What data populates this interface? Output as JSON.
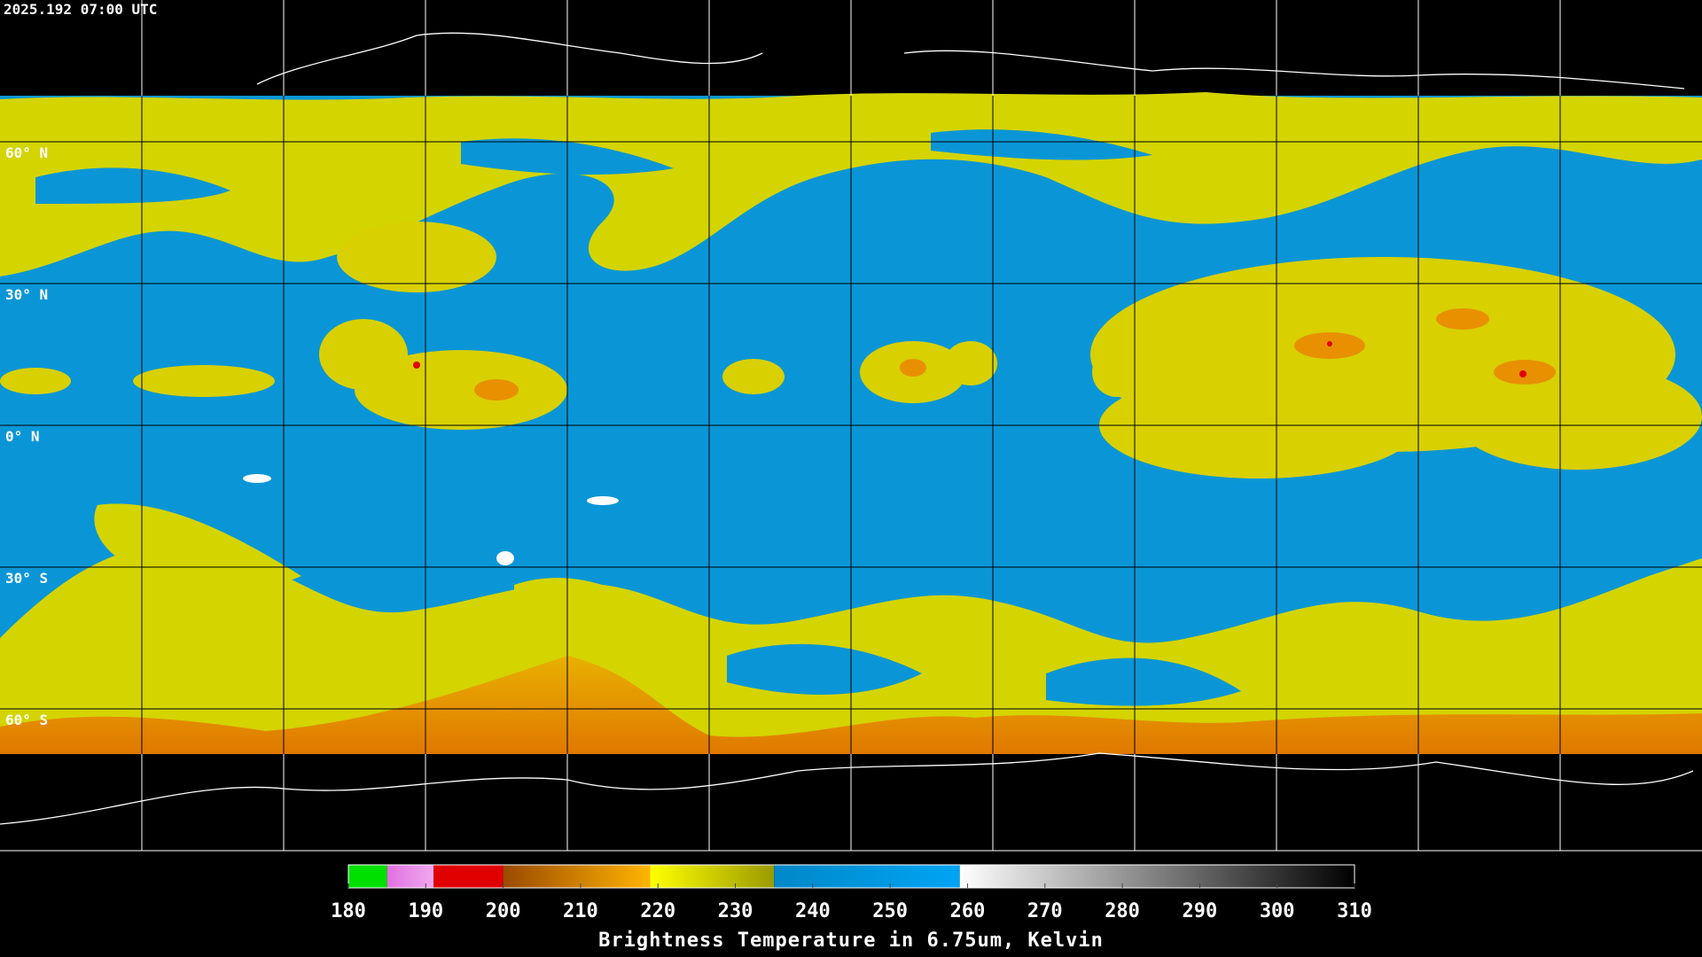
{
  "header": {
    "timestamp": "2025.192 07:00 UTC"
  },
  "map": {
    "lat_labels": [
      "60° N",
      "30° N",
      "0° N",
      "30° S",
      "60° S"
    ]
  },
  "colorbar": {
    "title": "Brightness Temperature in 6.75um, Kelvin",
    "range": [
      180,
      310
    ],
    "ticks": [
      180,
      190,
      200,
      210,
      220,
      230,
      240,
      250,
      260,
      270,
      280,
      290,
      300,
      310
    ],
    "segments": [
      {
        "from": 180,
        "to": 185,
        "colors": [
          "#00e000",
          "#00e000"
        ]
      },
      {
        "from": 185,
        "to": 191,
        "colors": [
          "#e070e0",
          "#f0a8f0"
        ]
      },
      {
        "from": 191,
        "to": 200,
        "colors": [
          "#e00000",
          "#e00000"
        ]
      },
      {
        "from": 200,
        "to": 219,
        "colors": [
          "#9a4a00",
          "#ffb400"
        ]
      },
      {
        "from": 219,
        "to": 235,
        "colors": [
          "#ffff00",
          "#9a9a00"
        ]
      },
      {
        "from": 235,
        "to": 259,
        "colors": [
          "#0088c8",
          "#00a4f4"
        ]
      },
      {
        "from": 259,
        "to": 310,
        "colors": [
          "#ffffff",
          "#000000"
        ]
      }
    ]
  }
}
